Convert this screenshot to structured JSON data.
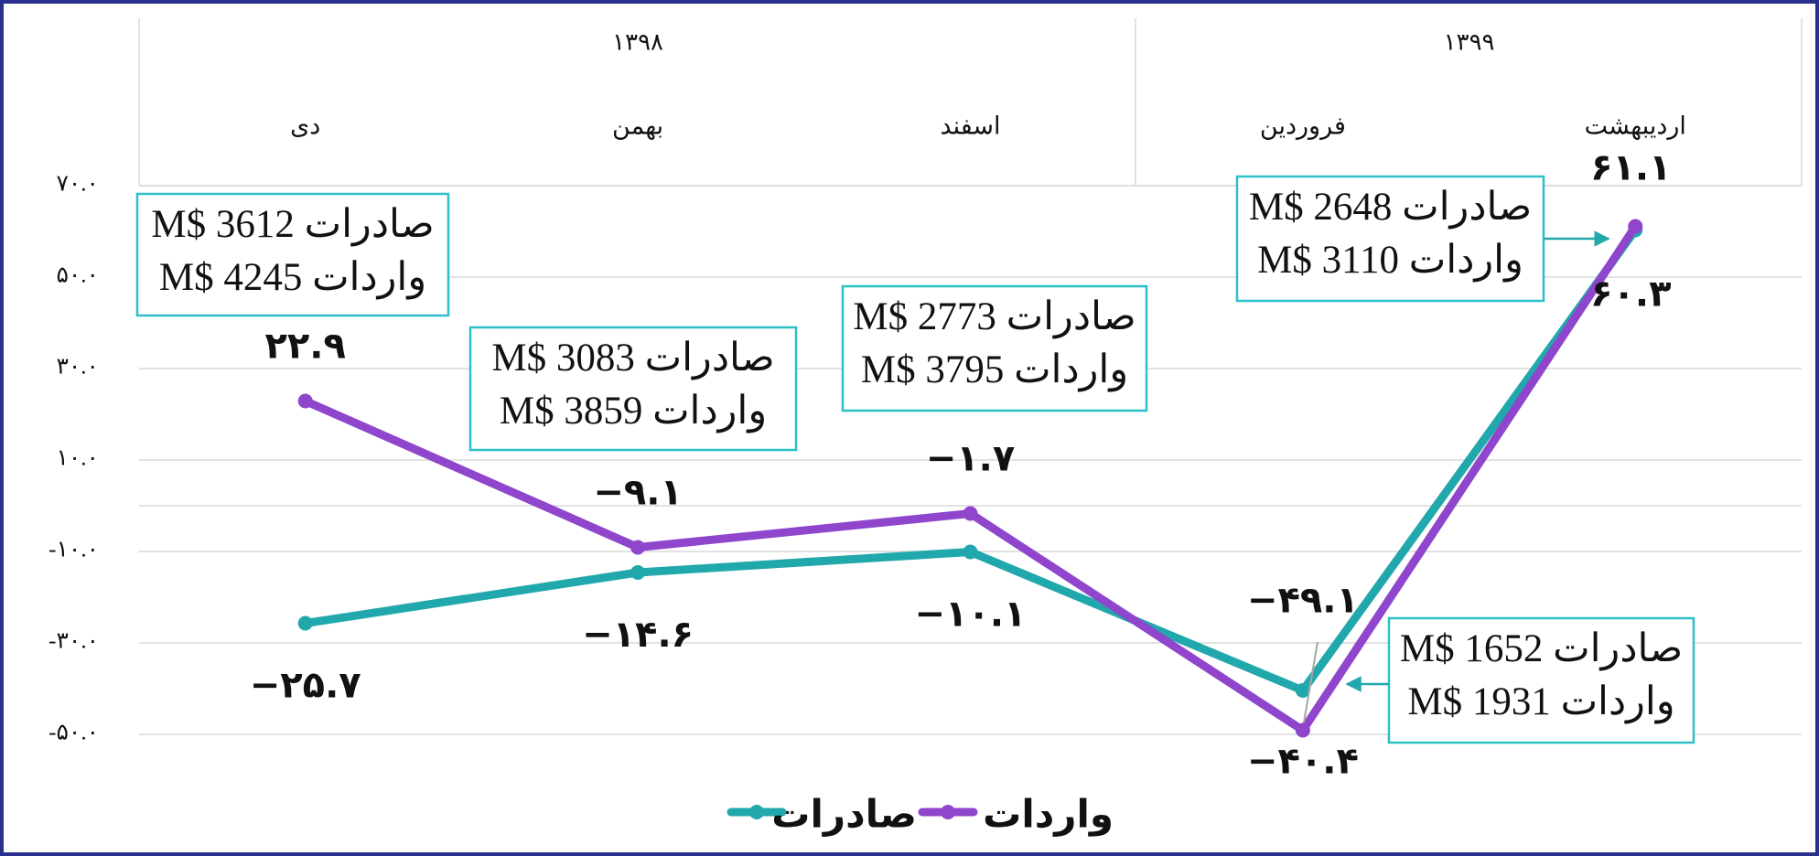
{
  "chart_data": {
    "type": "line",
    "x_groups": [
      "۱۳۹۸",
      "۱۳۹۹"
    ],
    "categories": [
      "دی",
      "بهمن",
      "اسفند",
      "فروردین",
      "اردیبهشت"
    ],
    "series": [
      {
        "name": "صادرات",
        "color": "#21a8ac",
        "values": [
          -25.7,
          -14.6,
          -10.1,
          -40.4,
          60.3
        ],
        "value_labels": [
          "−۲۵.۷",
          "−۱۴.۶",
          "−۱۰.۱",
          "−۴۰.۴",
          "۶۰.۳"
        ]
      },
      {
        "name": "واردات",
        "color": "#8f45cc",
        "values": [
          22.9,
          -9.1,
          -1.7,
          -49.1,
          61.1
        ],
        "value_labels": [
          "۲۲.۹",
          "−۹.۱",
          "−۱.۷",
          "−۴۹.۱",
          "۶۱.۱"
        ]
      }
    ],
    "ylim": [
      -50,
      70
    ],
    "yticks": [
      {
        "value": 70,
        "label": "۷۰.۰"
      },
      {
        "value": 50,
        "label": "۵۰.۰"
      },
      {
        "value": 30,
        "label": "۳۰.۰"
      },
      {
        "value": 10,
        "label": "۱۰.۰"
      },
      {
        "value": -10,
        "label": "-۱۰.۰"
      },
      {
        "value": -30,
        "label": "-۳۰.۰"
      },
      {
        "value": -50,
        "label": "-۵۰.۰"
      }
    ],
    "grid": true,
    "legend": "bottom",
    "annotations": [
      {
        "lines": [
          "M$ 3612 صادرات",
          "M$ 4245 واردات"
        ]
      },
      {
        "lines": [
          "M$ 3083 صادرات",
          "M$ 3859 واردات"
        ]
      },
      {
        "lines": [
          "M$ 2773 صادرات",
          "M$ 3795 واردات"
        ]
      },
      {
        "lines": [
          "M$ 2648 صادرات",
          "M$ 3110 واردات"
        ]
      },
      {
        "lines": [
          "M$ 1652 صادرات",
          "M$ 1931 واردات"
        ]
      }
    ]
  }
}
